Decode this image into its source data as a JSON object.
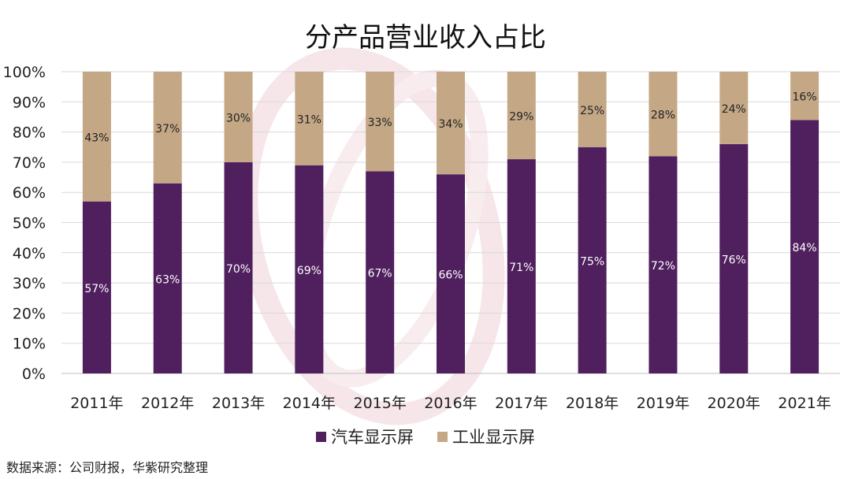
{
  "chart_data": {
    "type": "bar",
    "stacked": true,
    "title": "分产品营业收入占比",
    "categories": [
      "2011年",
      "2012年",
      "2013年",
      "2014年",
      "2015年",
      "2016年",
      "2017年",
      "2018年",
      "2019年",
      "2020年",
      "2021年"
    ],
    "series": [
      {
        "name": "汽车显示屏",
        "color": "#4f1f5e",
        "values": [
          57,
          63,
          70,
          69,
          67,
          66,
          71,
          75,
          72,
          76,
          84
        ]
      },
      {
        "name": "工业显示屏",
        "color": "#c4a886",
        "values": [
          43,
          37,
          30,
          31,
          33,
          34,
          29,
          25,
          28,
          24,
          16
        ]
      }
    ],
    "ylim": [
      0,
      100
    ],
    "yticks": [
      "0%",
      "10%",
      "20%",
      "30%",
      "40%",
      "50%",
      "60%",
      "70%",
      "80%",
      "90%",
      "100%"
    ],
    "grid": true,
    "legend": "bottom",
    "data_label_format": "{v}%"
  },
  "source": "数据来源：公司财报，华紫研究整理"
}
